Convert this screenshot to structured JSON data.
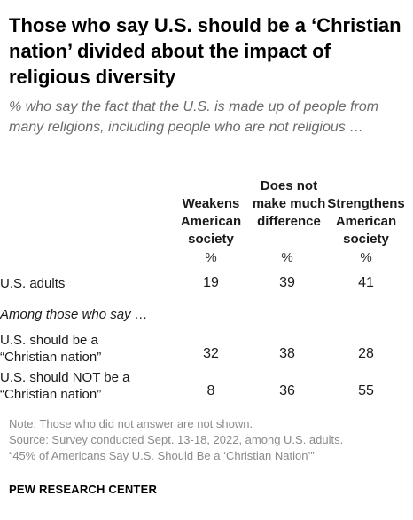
{
  "title": "Those who say U.S. should be a ‘Christian nation’ divided about the impact of religious diversity",
  "subtitle": "% who say the fact that the U.S. is made up of people from many religions, including people who are not religious …",
  "chart_data": {
    "type": "table",
    "columns": [
      {
        "label": "Weakens American society",
        "unit": "%"
      },
      {
        "label": "Does not make much difference",
        "unit": "%"
      },
      {
        "label": "Strengthens American society",
        "unit": "%"
      }
    ],
    "rows": [
      {
        "label": "U.S. adults",
        "values": [
          19,
          39,
          41
        ]
      },
      {
        "label": "U.S. should be a “Christian nation”",
        "values": [
          32,
          38,
          28
        ]
      },
      {
        "label": "U.S. should NOT be a “Christian nation”",
        "values": [
          8,
          36,
          55
        ]
      }
    ],
    "group_label": "Among those who say …"
  },
  "footer": {
    "note": "Note: Those who did not answer are not shown.",
    "source": "Source: Survey conducted Sept. 13-18, 2022, among U.S. adults.",
    "report": "“45% of Americans Say U.S. Should Be a ‘Christian Nation’”",
    "brand": "PEW RESEARCH CENTER"
  }
}
